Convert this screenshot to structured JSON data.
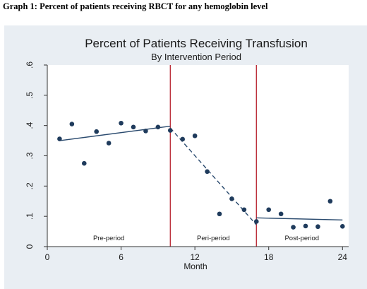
{
  "document": {
    "caption": "Graph 1: Percent of patients receiving RBCT for any hemoglobin level"
  },
  "chart_data": {
    "type": "scatter",
    "title": "Percent of Patients Receiving Transfusion",
    "subtitle": "By Intervention Period",
    "xlabel": "Month",
    "ylabel": "",
    "xlim": [
      0,
      24.5
    ],
    "ylim": [
      0,
      0.6
    ],
    "x_ticks": [
      0,
      6,
      12,
      18,
      24
    ],
    "x_tick_labels": [
      "0",
      "6",
      "12",
      "18",
      "24"
    ],
    "y_ticks": [
      0,
      0.1,
      0.2,
      0.3,
      0.4,
      0.5,
      0.6
    ],
    "y_tick_labels": [
      "0",
      ".1",
      ".2",
      ".3",
      ".4",
      ".5",
      ".6"
    ],
    "grid": false,
    "points": {
      "x": [
        1,
        2,
        3,
        4,
        5,
        6,
        7,
        8,
        9,
        10,
        11,
        12,
        13,
        14,
        15,
        16,
        17,
        18,
        19,
        20,
        21,
        22,
        23,
        24
      ],
      "y": [
        0.356,
        0.405,
        0.275,
        0.38,
        0.342,
        0.408,
        0.395,
        0.382,
        0.395,
        0.384,
        0.355,
        0.366,
        0.248,
        0.108,
        0.158,
        0.122,
        0.083,
        0.122,
        0.108,
        0.064,
        0.068,
        0.066,
        0.15,
        0.067
      ],
      "color": "#1f3b5c"
    },
    "fit_lines": [
      {
        "x": [
          1,
          10
        ],
        "y": [
          0.35,
          0.398
        ],
        "style": "solid"
      },
      {
        "x": [
          10,
          17
        ],
        "y": [
          0.392,
          0.072
        ],
        "style": "dashed"
      },
      {
        "x": [
          17,
          24
        ],
        "y": [
          0.095,
          0.088
        ],
        "style": "solid"
      }
    ],
    "period_boundaries": [
      10,
      17
    ],
    "boundary_color": "#b8232f",
    "periods": [
      {
        "label": "Pre-period",
        "x_center": 5
      },
      {
        "label": "Peri-period",
        "x_center": 13.5
      },
      {
        "label": "Post-period",
        "x_center": 20.7
      }
    ],
    "colors": {
      "background": "#e9eef3",
      "plot_background": "#ffffff",
      "line": "#2a4a6e"
    }
  }
}
